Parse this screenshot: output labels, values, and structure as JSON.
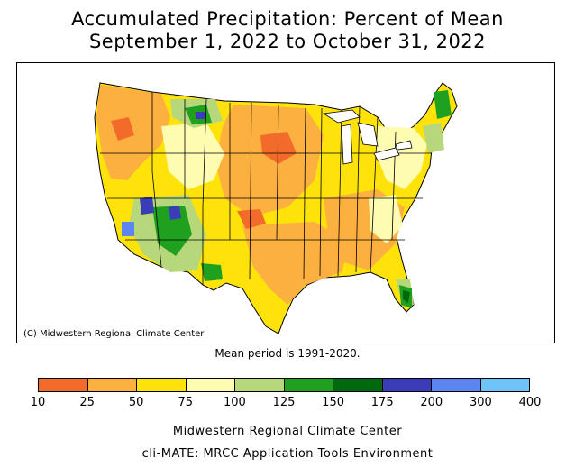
{
  "title": {
    "line1": "Accumulated Precipitation: Percent of Mean",
    "line2": "September 1, 2022 to October 31, 2022"
  },
  "map": {
    "credit": "(C) Midwestern Regional Climate Center"
  },
  "mean_period": "Mean period is 1991-2020.",
  "legend": {
    "ticks": [
      "10",
      "25",
      "50",
      "75",
      "100",
      "125",
      "150",
      "175",
      "200",
      "300",
      "400"
    ],
    "colors": [
      "#f26b2b",
      "#fbb040",
      "#fde30a",
      "#fefcb0",
      "#b6d87a",
      "#1fa01f",
      "#00680f",
      "#3b3db8",
      "#5b86f0",
      "#6ec4f7"
    ]
  },
  "footer": {
    "line1": "Midwestern Regional Climate Center",
    "line2": "cli-MATE: MRCC Application Tools Environment"
  }
}
